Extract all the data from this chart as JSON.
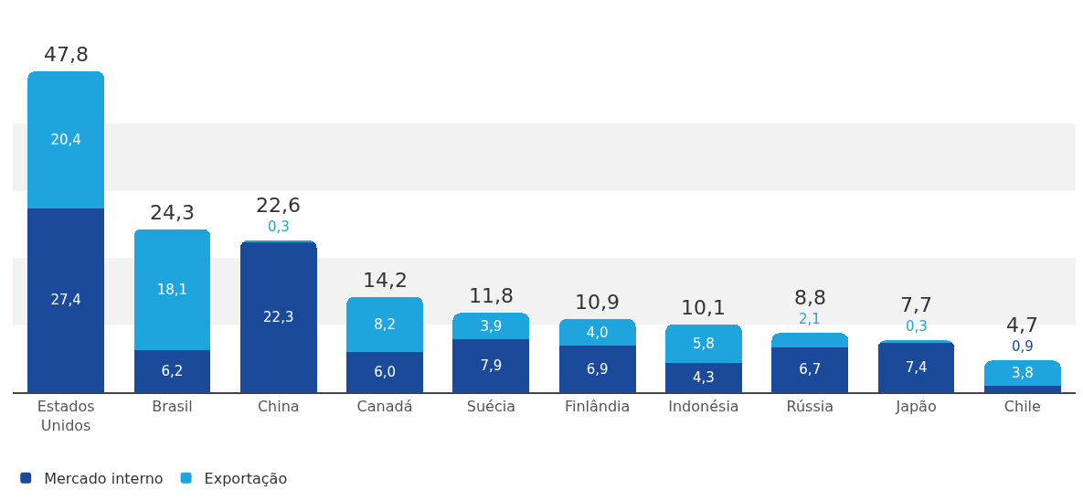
{
  "chart_data": {
    "type": "bar",
    "stacked": true,
    "categories": [
      "Estados\nUnidos",
      "Brasil",
      "China",
      "Canadá",
      "Suécia",
      "Finlândia",
      "Indonésia",
      "Rússia",
      "Japão",
      "Chile"
    ],
    "series": [
      {
        "name": "Mercado interno",
        "color": "#1b4a9b",
        "values": [
          27.4,
          6.2,
          22.3,
          6.0,
          7.9,
          6.9,
          4.3,
          6.7,
          7.4,
          0.9
        ],
        "value_labels": [
          "27,4",
          "6,2",
          "22,3",
          "6,0",
          "7,9",
          "6,9",
          "4,3",
          "6,7",
          "7,4",
          "0,9"
        ]
      },
      {
        "name": "Exportação",
        "color": "#1ea5de",
        "values": [
          20.4,
          18.1,
          0.3,
          8.2,
          3.9,
          4.0,
          5.8,
          2.1,
          0.3,
          3.8
        ],
        "value_labels": [
          "20,4",
          "18,1",
          "0,3",
          "8,2",
          "3,9",
          "4,0",
          "5,8",
          "2,1",
          "0,3",
          "3,8"
        ]
      }
    ],
    "totals": [
      "47,8",
      "24,3",
      "22,6",
      "14,2",
      "11,8",
      "10,9",
      "10,1",
      "8,8",
      "7,7",
      "4,7"
    ],
    "tick_labels": "x",
    "grid": false,
    "legend": "bottom left",
    "bands": [
      {
        "axis": "y",
        "from": 10,
        "to": 20,
        "color": "#f2f2f2"
      },
      {
        "axis": "y",
        "from": 30,
        "to": 40,
        "color": "#f2f2f2"
      }
    ]
  }
}
